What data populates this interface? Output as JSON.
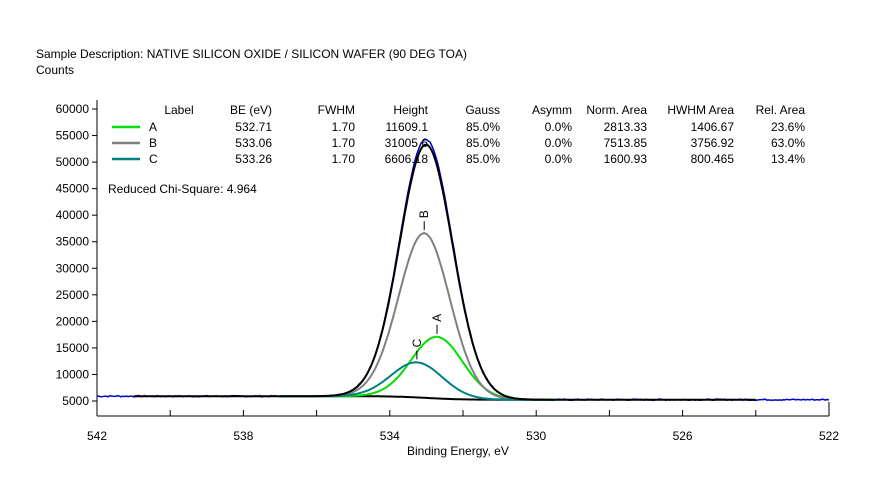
{
  "header": {
    "description": "Sample Description:  NATIVE SILICON OXIDE / SILICON WAFER (90 DEG TOA)",
    "ylabel": "Counts"
  },
  "chart_data": {
    "type": "line",
    "xlabel": "Binding Energy, eV",
    "ylabel": "Counts",
    "xlim": [
      542,
      522
    ],
    "x_reversed": true,
    "ylim": [
      5000,
      60000
    ],
    "x_ticks": [
      "542",
      "538",
      "534",
      "530",
      "526",
      "522"
    ],
    "y_ticks": [
      "5000",
      "10000",
      "15000",
      "20000",
      "25000",
      "30000",
      "35000",
      "40000",
      "45000",
      "50000",
      "55000",
      "60000"
    ],
    "table_headers": [
      "Label",
      "BE (eV)",
      "FWHM",
      "Height",
      "Gauss",
      "Asymm",
      "Norm. Area",
      "HWHM Area",
      "Rel. Area"
    ],
    "components": [
      {
        "label": "A",
        "be": "532.71",
        "fwhm": "1.70",
        "height": "11609.1",
        "gauss": "85.0%",
        "asymm": "0.0%",
        "norm_area": "2813.33",
        "hwhm_area": "1406.67",
        "rel_area": "23.6%",
        "color": "#00e000"
      },
      {
        "label": "B",
        "be": "533.06",
        "fwhm": "1.70",
        "height": "31005.6",
        "gauss": "85.0%",
        "asymm": "0.0%",
        "norm_area": "7513.85",
        "hwhm_area": "3756.92",
        "rel_area": "63.0%",
        "color": "#808080"
      },
      {
        "label": "C",
        "be": "533.26",
        "fwhm": "1.70",
        "height": "6606.18",
        "gauss": "85.0%",
        "asymm": "0.0%",
        "norm_area": "1600.93",
        "hwhm_area": "800.465",
        "rel_area": "13.4%",
        "color": "#008080"
      }
    ],
    "background": {
      "high_be_level": 5900,
      "low_be_level": 5250,
      "range": [
        541,
        524
      ]
    },
    "data_color": "#0000cc",
    "envelope_color": "#000000",
    "chi_square": "Reduced Chi-Square: 4.964"
  }
}
